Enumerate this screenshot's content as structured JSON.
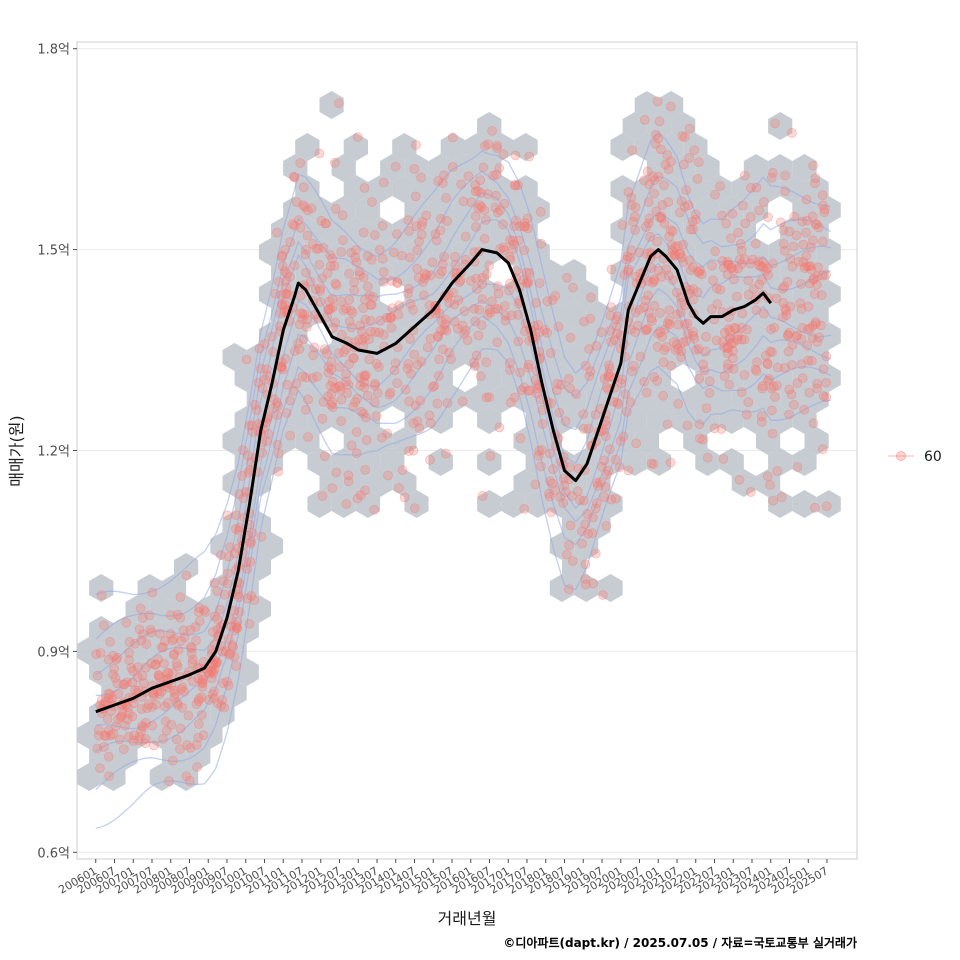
{
  "chart_data": {
    "type": "scatter",
    "xlabel": "거래년월",
    "ylabel": "매매가(원)",
    "caption": "©디아파트(dapt.kr) / 2025.07.05 / 자료=국토교통부 실거래가",
    "x_ticks": [
      "200601",
      "200607",
      "200701",
      "200707",
      "200801",
      "200807",
      "200901",
      "200907",
      "201001",
      "201007",
      "201101",
      "201107",
      "201201",
      "201207",
      "201301",
      "201307",
      "201401",
      "201407",
      "201501",
      "201507",
      "201601",
      "201607",
      "201701",
      "201707",
      "201801",
      "201807",
      "201901",
      "201907",
      "202001",
      "202007",
      "202101",
      "202107",
      "202201",
      "202207",
      "202301",
      "202307",
      "202401",
      "202407",
      "202501",
      "202507"
    ],
    "y_ticks": [
      {
        "value": 0.6,
        "label": "0.6억"
      },
      {
        "value": 0.9,
        "label": "0.9억"
      },
      {
        "value": 1.2,
        "label": "1.2억"
      },
      {
        "value": 1.5,
        "label": "1.5억"
      },
      {
        "value": 1.8,
        "label": "1.8억"
      }
    ],
    "x_range": [
      2005.5,
      2026.3
    ],
    "ylim": [
      0.59,
      1.81
    ],
    "grid": true,
    "legend": {
      "position": "right",
      "entries": [
        {
          "label": "60",
          "color": "#F8766D"
        }
      ]
    },
    "colors": {
      "points": "#F8766D",
      "hex": "#BDC3CA",
      "contour": "#8FA8E8",
      "trend": "#000000"
    },
    "trend_line": [
      [
        2006.0,
        0.81
      ],
      [
        2006.5,
        0.82
      ],
      [
        2007.0,
        0.83
      ],
      [
        2007.5,
        0.845
      ],
      [
        2008.0,
        0.855
      ],
      [
        2008.5,
        0.865
      ],
      [
        2008.9,
        0.875
      ],
      [
        2009.2,
        0.9
      ],
      [
        2009.5,
        0.95
      ],
      [
        2009.8,
        1.02
      ],
      [
        2010.1,
        1.12
      ],
      [
        2010.4,
        1.23
      ],
      [
        2010.7,
        1.3
      ],
      [
        2011.0,
        1.38
      ],
      [
        2011.3,
        1.43
      ],
      [
        2011.4,
        1.45
      ],
      [
        2011.6,
        1.44
      ],
      [
        2011.8,
        1.42
      ],
      [
        2012.0,
        1.4
      ],
      [
        2012.3,
        1.37
      ],
      [
        2012.7,
        1.36
      ],
      [
        2013.0,
        1.35
      ],
      [
        2013.5,
        1.345
      ],
      [
        2014.0,
        1.36
      ],
      [
        2014.5,
        1.385
      ],
      [
        2015.0,
        1.41
      ],
      [
        2015.5,
        1.45
      ],
      [
        2016.0,
        1.48
      ],
      [
        2016.3,
        1.5
      ],
      [
        2016.7,
        1.495
      ],
      [
        2017.0,
        1.48
      ],
      [
        2017.3,
        1.44
      ],
      [
        2017.6,
        1.38
      ],
      [
        2017.9,
        1.3
      ],
      [
        2018.2,
        1.23
      ],
      [
        2018.5,
        1.17
      ],
      [
        2018.8,
        1.155
      ],
      [
        2019.1,
        1.18
      ],
      [
        2019.4,
        1.23
      ],
      [
        2019.7,
        1.28
      ],
      [
        2020.0,
        1.33
      ],
      [
        2020.2,
        1.41
      ],
      [
        2020.5,
        1.45
      ],
      [
        2020.8,
        1.49
      ],
      [
        2021.0,
        1.5
      ],
      [
        2021.2,
        1.49
      ],
      [
        2021.5,
        1.47
      ],
      [
        2021.8,
        1.42
      ],
      [
        2022.0,
        1.4
      ],
      [
        2022.2,
        1.39
      ],
      [
        2022.4,
        1.4
      ],
      [
        2022.7,
        1.4
      ],
      [
        2023.0,
        1.41
      ],
      [
        2023.3,
        1.415
      ],
      [
        2023.6,
        1.425
      ],
      [
        2023.8,
        1.435
      ],
      [
        2024.0,
        1.42
      ]
    ]
  }
}
